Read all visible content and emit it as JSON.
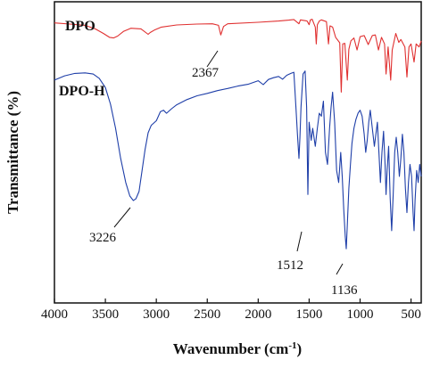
{
  "chart_data": {
    "type": "line",
    "xlabel": "Wavenumber (cm-1)",
    "ylabel": "Transmittance (%)",
    "xlim": [
      4000,
      400
    ],
    "x_reversed": true,
    "x_ticks": [
      4000,
      3500,
      3000,
      2500,
      2000,
      1500,
      1000,
      500
    ],
    "y_ticks": [],
    "grid": false,
    "legend": "none",
    "series": [
      {
        "name": "DPO",
        "color": "#e03030",
        "points": [
          [
            4000,
            93.0
          ],
          [
            3850,
            92.6
          ],
          [
            3700,
            92.2
          ],
          [
            3600,
            91.0
          ],
          [
            3520,
            89.5
          ],
          [
            3460,
            88.2
          ],
          [
            3420,
            88.0
          ],
          [
            3380,
            88.6
          ],
          [
            3320,
            90.2
          ],
          [
            3250,
            91.2
          ],
          [
            3150,
            91.0
          ],
          [
            3080,
            89.2
          ],
          [
            3060,
            89.8
          ],
          [
            3020,
            90.6
          ],
          [
            2950,
            91.6
          ],
          [
            2800,
            92.3
          ],
          [
            2600,
            92.6
          ],
          [
            2450,
            92.7
          ],
          [
            2390,
            92.2
          ],
          [
            2367,
            89.0
          ],
          [
            2340,
            91.8
          ],
          [
            2300,
            92.7
          ],
          [
            2000,
            93.2
          ],
          [
            1800,
            93.6
          ],
          [
            1700,
            93.9
          ],
          [
            1650,
            94.1
          ],
          [
            1600,
            92.7
          ],
          [
            1585,
            94.0
          ],
          [
            1520,
            93.6
          ],
          [
            1500,
            92.4
          ],
          [
            1488,
            94.0
          ],
          [
            1470,
            94.2
          ],
          [
            1440,
            91.6
          ],
          [
            1430,
            86.0
          ],
          [
            1420,
            92.4
          ],
          [
            1400,
            93.6
          ],
          [
            1380,
            94.0
          ],
          [
            1330,
            93.4
          ],
          [
            1310,
            86.0
          ],
          [
            1295,
            92.0
          ],
          [
            1270,
            91.6
          ],
          [
            1240,
            88.2
          ],
          [
            1200,
            86.4
          ],
          [
            1185,
            70.0
          ],
          [
            1170,
            86.0
          ],
          [
            1150,
            86.2
          ],
          [
            1125,
            74.0
          ],
          [
            1110,
            84.2
          ],
          [
            1090,
            87.0
          ],
          [
            1060,
            88.0
          ],
          [
            1030,
            84.0
          ],
          [
            1000,
            88.4
          ],
          [
            960,
            88.8
          ],
          [
            920,
            85.8
          ],
          [
            880,
            88.8
          ],
          [
            850,
            89.0
          ],
          [
            820,
            84.0
          ],
          [
            790,
            88.2
          ],
          [
            760,
            86.0
          ],
          [
            745,
            76.0
          ],
          [
            725,
            85.0
          ],
          [
            700,
            74.0
          ],
          [
            685,
            84.0
          ],
          [
            650,
            89.5
          ],
          [
            620,
            86.5
          ],
          [
            600,
            87.5
          ],
          [
            560,
            85.0
          ],
          [
            540,
            75.0
          ],
          [
            520,
            85.0
          ],
          [
            500,
            86.0
          ],
          [
            470,
            80.0
          ],
          [
            450,
            86.0
          ],
          [
            420,
            85.0
          ],
          [
            400,
            87.0
          ]
        ]
      },
      {
        "name": "DPO-H",
        "color": "#1e3ea8",
        "points": [
          [
            4000,
            74.0
          ],
          [
            3900,
            75.4
          ],
          [
            3800,
            76.2
          ],
          [
            3700,
            76.4
          ],
          [
            3620,
            76.0
          ],
          [
            3560,
            74.6
          ],
          [
            3500,
            71.5
          ],
          [
            3450,
            66.0
          ],
          [
            3400,
            58.0
          ],
          [
            3350,
            48.0
          ],
          [
            3300,
            40.0
          ],
          [
            3260,
            35.5
          ],
          [
            3226,
            34.0
          ],
          [
            3200,
            34.6
          ],
          [
            3170,
            37.0
          ],
          [
            3140,
            44.0
          ],
          [
            3110,
            51.0
          ],
          [
            3080,
            56.5
          ],
          [
            3050,
            59.0
          ],
          [
            3000,
            60.5
          ],
          [
            2960,
            63.5
          ],
          [
            2930,
            64.0
          ],
          [
            2900,
            63.0
          ],
          [
            2850,
            64.5
          ],
          [
            2800,
            65.8
          ],
          [
            2700,
            67.5
          ],
          [
            2600,
            68.8
          ],
          [
            2500,
            69.6
          ],
          [
            2400,
            70.5
          ],
          [
            2300,
            71.2
          ],
          [
            2200,
            72.0
          ],
          [
            2100,
            72.6
          ],
          [
            2050,
            73.2
          ],
          [
            2000,
            73.8
          ],
          [
            1950,
            72.5
          ],
          [
            1900,
            74.2
          ],
          [
            1850,
            74.8
          ],
          [
            1800,
            75.2
          ],
          [
            1760,
            74.3
          ],
          [
            1720,
            75.6
          ],
          [
            1680,
            76.2
          ],
          [
            1650,
            76.6
          ],
          [
            1630,
            65.0
          ],
          [
            1615,
            56.0
          ],
          [
            1600,
            48.0
          ],
          [
            1590,
            55.0
          ],
          [
            1580,
            65.0
          ],
          [
            1560,
            76.0
          ],
          [
            1540,
            77.0
          ],
          [
            1525,
            65.0
          ],
          [
            1512,
            36.0
          ],
          [
            1500,
            60.0
          ],
          [
            1480,
            54.0
          ],
          [
            1465,
            58.0
          ],
          [
            1440,
            52.0
          ],
          [
            1420,
            58.0
          ],
          [
            1400,
            63.0
          ],
          [
            1380,
            62.0
          ],
          [
            1360,
            67.0
          ],
          [
            1340,
            50.0
          ],
          [
            1320,
            46.0
          ],
          [
            1300,
            58.0
          ],
          [
            1285,
            65.0
          ],
          [
            1270,
            70.0
          ],
          [
            1250,
            60.0
          ],
          [
            1230,
            44.0
          ],
          [
            1210,
            40.0
          ],
          [
            1190,
            50.0
          ],
          [
            1175,
            42.0
          ],
          [
            1160,
            31.0
          ],
          [
            1145,
            22.0
          ],
          [
            1136,
            18.0
          ],
          [
            1125,
            26.0
          ],
          [
            1110,
            38.0
          ],
          [
            1095,
            46.0
          ],
          [
            1080,
            53.0
          ],
          [
            1060,
            58.0
          ],
          [
            1040,
            61.0
          ],
          [
            1020,
            63.0
          ],
          [
            1000,
            64.0
          ],
          [
            980,
            62.0
          ],
          [
            960,
            56.0
          ],
          [
            945,
            50.0
          ],
          [
            930,
            54.0
          ],
          [
            915,
            60.0
          ],
          [
            900,
            64.0
          ],
          [
            880,
            58.0
          ],
          [
            860,
            52.0
          ],
          [
            845,
            56.0
          ],
          [
            830,
            60.0
          ],
          [
            815,
            50.0
          ],
          [
            800,
            40.0
          ],
          [
            785,
            50.0
          ],
          [
            770,
            57.0
          ],
          [
            755,
            46.0
          ],
          [
            745,
            36.0
          ],
          [
            735,
            44.0
          ],
          [
            720,
            52.0
          ],
          [
            705,
            35.0
          ],
          [
            690,
            24.0
          ],
          [
            675,
            36.0
          ],
          [
            660,
            50.0
          ],
          [
            645,
            55.0
          ],
          [
            630,
            50.0
          ],
          [
            615,
            42.0
          ],
          [
            600,
            48.0
          ],
          [
            585,
            56.0
          ],
          [
            570,
            50.0
          ],
          [
            555,
            38.0
          ],
          [
            540,
            30.0
          ],
          [
            525,
            40.0
          ],
          [
            510,
            46.0
          ],
          [
            495,
            42.0
          ],
          [
            480,
            30.0
          ],
          [
            470,
            24.0
          ],
          [
            460,
            34.0
          ],
          [
            445,
            44.0
          ],
          [
            430,
            40.0
          ],
          [
            415,
            46.0
          ],
          [
            400,
            42.0
          ]
        ]
      }
    ],
    "annotations": [
      {
        "text": "2367",
        "series": "DPO",
        "x": 2367
      },
      {
        "text": "3226",
        "series": "DPO-H",
        "x": 3226
      },
      {
        "text": "1512",
        "series": "DPO-H",
        "x": 1512
      },
      {
        "text": "1136",
        "series": "DPO-H",
        "x": 1136
      }
    ]
  },
  "labels": {
    "dpo": "DPO",
    "dpoh": "DPO-H",
    "xlabel_main": "Wavenumber (cm",
    "xlabel_sup": "-1",
    "xlabel_end": ")",
    "ylabel": "Transmittance (%)",
    "peak_2367": "2367",
    "peak_3226": "3226",
    "peak_1512": "1512",
    "peak_1136": "1136"
  }
}
